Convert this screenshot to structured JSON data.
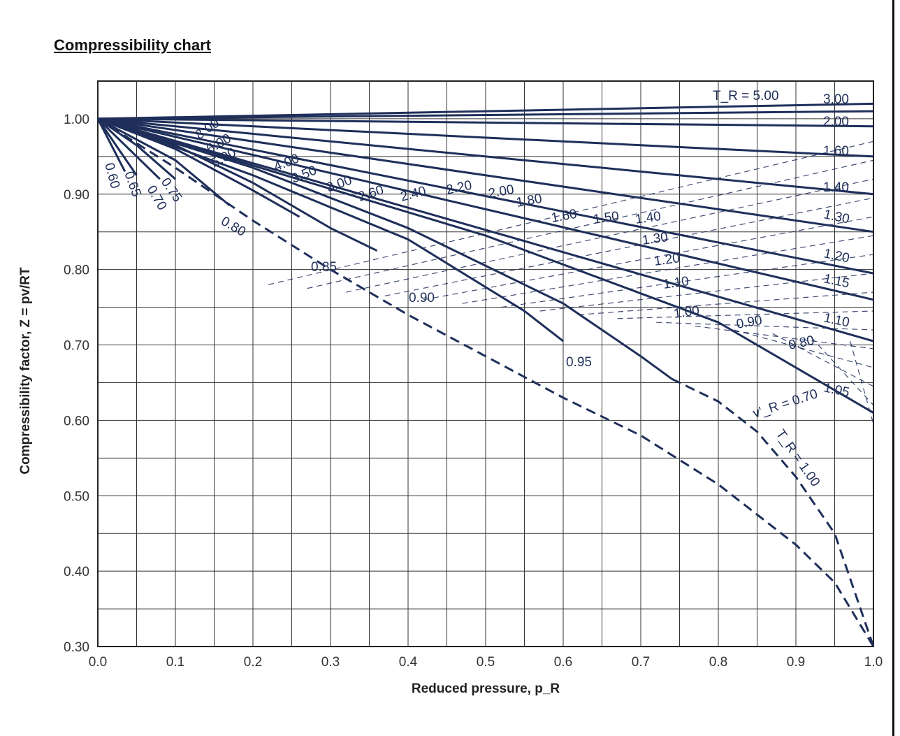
{
  "page": {
    "title": "Compressibility chart"
  },
  "chart_data": {
    "type": "line",
    "title": "",
    "xlabel": "Reduced pressure, p_R",
    "ylabel": "Compressibility factor, Z = pv/RT",
    "xlim": [
      0,
      1.0
    ],
    "ylim": [
      0.3,
      1.05
    ],
    "x_ticks": [
      "0.0",
      "0.1",
      "0.2",
      "0.3",
      "0.4",
      "0.5",
      "0.6",
      "0.7",
      "0.8",
      "0.9",
      "1.0"
    ],
    "y_ticks": [
      "0.30",
      "0.40",
      "0.50",
      "0.60",
      "0.70",
      "0.80",
      "0.90",
      "1.00"
    ],
    "grid": true,
    "line_color": "#1f2f5a",
    "isotherms_TR": [
      {
        "label": "5.00",
        "x": [
          0,
          1.0
        ],
        "y": [
          1.0,
          1.02
        ]
      },
      {
        "label": "3.00",
        "x": [
          0,
          1.0
        ],
        "y": [
          1.0,
          1.01
        ]
      },
      {
        "label": "2.00",
        "x": [
          0,
          1.0
        ],
        "y": [
          1.0,
          0.99
        ]
      },
      {
        "label": "1.60",
        "x": [
          0,
          1.0
        ],
        "y": [
          1.0,
          0.95
        ]
      },
      {
        "label": "1.40",
        "x": [
          0,
          1.0
        ],
        "y": [
          1.0,
          0.9
        ]
      },
      {
        "label": "1.30",
        "x": [
          0,
          1.0
        ],
        "y": [
          1.0,
          0.85
        ]
      },
      {
        "label": "1.20",
        "x": [
          0,
          1.0
        ],
        "y": [
          1.0,
          0.795
        ]
      },
      {
        "label": "1.15",
        "x": [
          0,
          1.0
        ],
        "y": [
          1.0,
          0.76
        ]
      },
      {
        "label": "1.10",
        "x": [
          0,
          1.0
        ],
        "y": [
          1.0,
          0.705
        ]
      },
      {
        "label": "1.05",
        "x": [
          0,
          0.5,
          0.8,
          1.0
        ],
        "y": [
          1.0,
          0.845,
          0.73,
          0.61
        ]
      },
      {
        "label": "1.00",
        "x": [
          0,
          0.2,
          0.4,
          0.6,
          0.7,
          0.74
        ],
        "y": [
          1.0,
          0.935,
          0.855,
          0.755,
          0.685,
          0.655
        ]
      },
      {
        "label": "0.95",
        "x": [
          0,
          0.2,
          0.4,
          0.55,
          0.6
        ],
        "y": [
          1.0,
          0.925,
          0.84,
          0.745,
          0.705
        ]
      },
      {
        "label": "0.90",
        "x": [
          0,
          0.1,
          0.2,
          0.3,
          0.36
        ],
        "y": [
          1.0,
          0.965,
          0.915,
          0.855,
          0.825
        ]
      },
      {
        "label": "0.85",
        "x": [
          0,
          0.1,
          0.2,
          0.26
        ],
        "y": [
          1.0,
          0.96,
          0.905,
          0.87
        ]
      },
      {
        "label": "0.80",
        "x": [
          0,
          0.1,
          0.17
        ],
        "y": [
          1.0,
          0.945,
          0.885
        ]
      },
      {
        "label": "0.75",
        "x": [
          0,
          0.05,
          0.1
        ],
        "y": [
          1.0,
          0.965,
          0.92
        ]
      },
      {
        "label": "0.70",
        "x": [
          0,
          0.04,
          0.08
        ],
        "y": [
          1.0,
          0.96,
          0.92
        ]
      },
      {
        "label": "0.65",
        "x": [
          0,
          0.03,
          0.05
        ],
        "y": [
          1.0,
          0.955,
          0.925
        ]
      },
      {
        "label": "0.60",
        "x": [
          0,
          0.02,
          0.035
        ],
        "y": [
          1.0,
          0.96,
          0.93
        ]
      }
    ],
    "saturation_curve_dashed": {
      "x": [
        0,
        0.1,
        0.2,
        0.3,
        0.4,
        0.5,
        0.6,
        0.7,
        0.8,
        0.9,
        0.95,
        1.0
      ],
      "y": [
        1.0,
        0.935,
        0.865,
        0.8,
        0.74,
        0.685,
        0.63,
        0.58,
        0.515,
        0.435,
        0.385,
        0.3
      ]
    },
    "critical_isotherm_dashed": {
      "label": "T_R = 1.00",
      "x": [
        0.74,
        0.8,
        0.85,
        0.9,
        0.95,
        1.0
      ],
      "y": [
        0.655,
        0.625,
        0.585,
        0.525,
        0.45,
        0.3
      ]
    },
    "curve_labels": {
      "TR_prefix": "T_R = 5.00",
      "right_edge": [
        "3.00",
        "2.00",
        "1.60",
        "1.40",
        "1.30",
        "1.20",
        "1.15",
        "1.10",
        "1.05"
      ],
      "diagonal": [
        "8.00",
        "6.00",
        "5.00",
        "4.00",
        "3.50",
        "3.00",
        "2.60",
        "2.40",
        "2.20",
        "2.00",
        "1.80",
        "1.60",
        "1.50",
        "1.40",
        "1.30",
        "1.20",
        "1.10",
        "1.00",
        "0.90",
        "0.80"
      ],
      "low_TR": [
        "0.60",
        "0.65",
        "0.70",
        "0.75",
        "0.80",
        "0.85",
        "0.90",
        "0.95"
      ],
      "vR_label": "v'_R = 0.70",
      "TR_critical": "T_R = 1.00"
    }
  }
}
